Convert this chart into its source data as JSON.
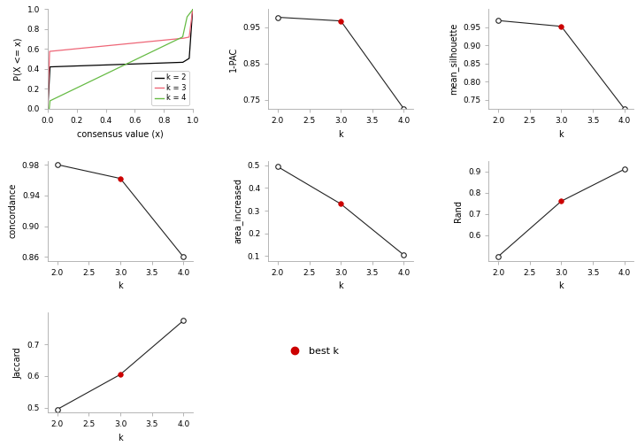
{
  "ecdf": {
    "colors": {
      "k2": "#000000",
      "k3": "#ee6677",
      "k4": "#66bb44"
    },
    "xlabel": "consensus value (x)",
    "ylabel": "P(X <= x)"
  },
  "pac": {
    "k": [
      2,
      3,
      4
    ],
    "y": [
      0.977,
      0.967,
      0.725
    ],
    "best_k": 3,
    "xlabel": "k",
    "ylabel": "1-PAC",
    "ylim": [
      0.725,
      1.0
    ],
    "yticks": [
      0.75,
      0.85,
      0.95
    ]
  },
  "silhouette": {
    "k": [
      2,
      3,
      4
    ],
    "y": [
      0.968,
      0.952,
      0.725
    ],
    "best_k": 3,
    "xlabel": "k",
    "ylabel": "mean_silhouette",
    "ylim": [
      0.725,
      1.0
    ],
    "yticks": [
      0.75,
      0.8,
      0.85,
      0.9,
      0.95
    ]
  },
  "concordance": {
    "k": [
      2,
      3,
      4
    ],
    "y": [
      0.98,
      0.962,
      0.86
    ],
    "best_k": 3,
    "xlabel": "k",
    "ylabel": "concordance",
    "ylim": [
      0.855,
      0.985
    ],
    "yticks": [
      0.86,
      0.9,
      0.94,
      0.98
    ]
  },
  "area_increased": {
    "k": [
      2,
      3,
      4
    ],
    "y": [
      0.494,
      0.33,
      0.105
    ],
    "best_k": 3,
    "xlabel": "k",
    "ylabel": "area_increased",
    "ylim": [
      0.08,
      0.52
    ],
    "yticks": [
      0.1,
      0.2,
      0.3,
      0.4,
      0.5
    ]
  },
  "rand": {
    "k": [
      2,
      3,
      4
    ],
    "y": [
      0.5,
      0.76,
      0.91
    ],
    "best_k": 3,
    "xlabel": "k",
    "ylabel": "Rand",
    "ylim": [
      0.48,
      0.95
    ],
    "yticks": [
      0.6,
      0.7,
      0.8,
      0.9
    ]
  },
  "jaccard": {
    "k": [
      2,
      3,
      4
    ],
    "y": [
      0.495,
      0.605,
      0.775
    ],
    "best_k": 3,
    "xlabel": "k",
    "ylabel": "Jaccard",
    "ylim": [
      0.485,
      0.8
    ],
    "yticks": [
      0.5,
      0.6,
      0.7
    ]
  },
  "legend_best_k": {
    "color": "#cc0000",
    "label": "best k"
  },
  "background": "#ffffff",
  "line_color": "#222222",
  "spine_color": "#aaaaaa",
  "open_marker_size": 4,
  "best_marker_size": 4
}
